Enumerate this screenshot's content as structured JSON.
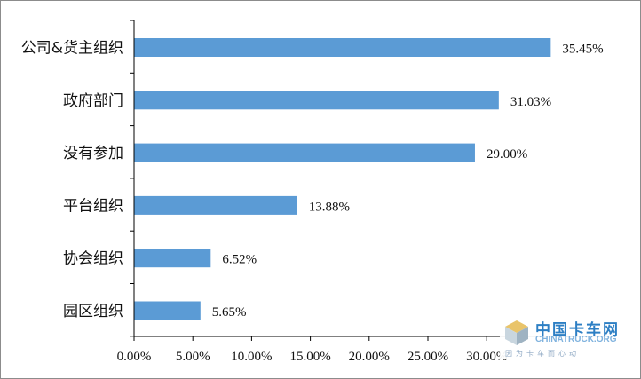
{
  "chart_data": {
    "type": "bar",
    "orientation": "horizontal",
    "categories": [
      "公司&货主组织",
      "政府部门",
      "没有参加",
      "平台组织",
      "协会组织",
      "园区组织"
    ],
    "values": [
      35.45,
      31.03,
      29.0,
      13.88,
      6.52,
      5.65
    ],
    "value_labels": [
      "35.45%",
      "31.03%",
      "29.00%",
      "13.88%",
      "6.52%",
      "5.65%"
    ],
    "x_ticks": [
      "0.00%",
      "5.00%",
      "10.00%",
      "15.00%",
      "20.00%",
      "25.00%",
      "30.00%"
    ],
    "xlim": [
      0,
      40
    ],
    "grid": false,
    "legend": "none",
    "bar_color": "#5b9bd5"
  },
  "watermark": {
    "title": "中国卡车网",
    "subtitle": "CHINATRUCK.ORG",
    "slogan": "因为卡车而心动"
  }
}
